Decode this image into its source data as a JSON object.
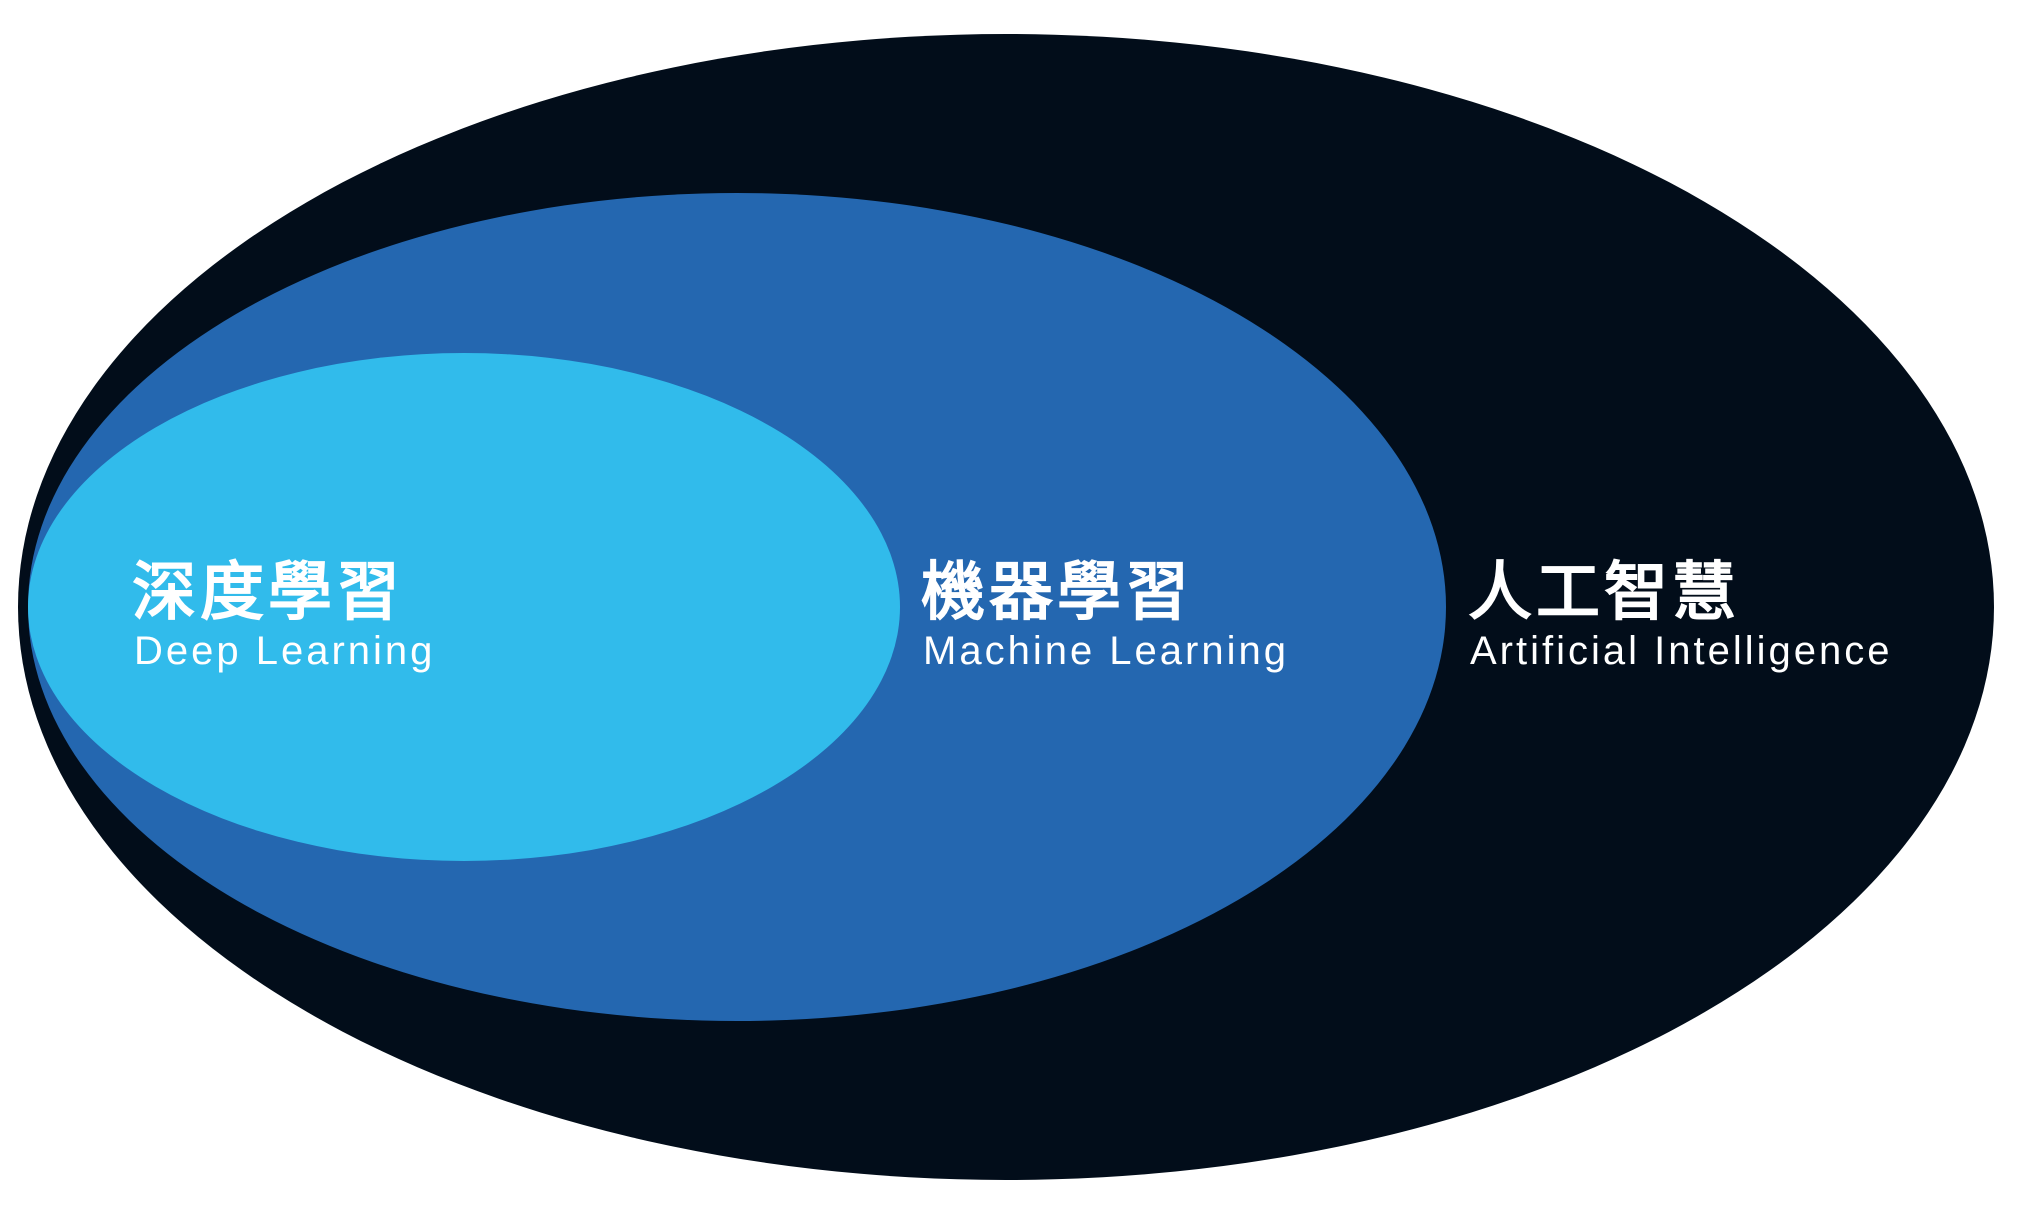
{
  "colors": {
    "background": "#ffffff",
    "ai_ellipse": "#020d1a",
    "ml_ellipse": "#2467b0",
    "dl_ellipse": "#31bbeb",
    "label_text": "#ffffff"
  },
  "sets": [
    {
      "id": "ai",
      "label_zh": "人工智慧",
      "label_en": "Artificial Intelligence"
    },
    {
      "id": "ml",
      "label_zh": "機器學習",
      "label_en": "Machine Learning"
    },
    {
      "id": "dl",
      "label_zh": "深度學習",
      "label_en": "Deep Learning"
    }
  ]
}
